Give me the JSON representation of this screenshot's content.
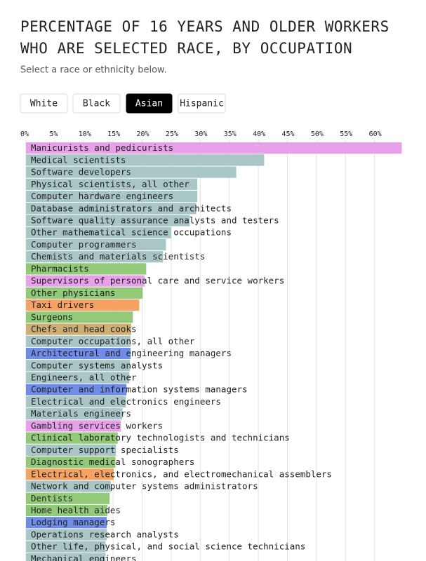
{
  "chart_data": {
    "type": "hbar",
    "title": [
      "PERCENTAGE OF 16 YEARS AND OLDER WORKERS",
      "WHO ARE SELECTED RACE, BY OCCUPATION"
    ],
    "subtitle": "Select a race or ethnicity below.",
    "controls": {
      "options": [
        "White",
        "Black",
        "Asian",
        "Hispanic"
      ],
      "selected": 2
    },
    "categories": [
      "Manicurists and pedicurists",
      "Medical scientists",
      "Software developers",
      "Physical scientists, all other",
      "Computer hardware engineers",
      "Database administrators and architects",
      "Software quality assurance analysts and testers",
      "Other mathematical science occupations",
      "Computer programmers",
      "Chemists and materials scientists",
      "Pharmacists",
      "Supervisors of personal care and service workers",
      "Other physicians",
      "Taxi drivers",
      "Surgeons",
      "Chefs and head cooks",
      "Computer occupations, all other",
      "Architectural and engineering managers",
      "Computer systems analysts",
      "Engineers, all other",
      "Computer and information systems managers",
      "Electrical and electronics engineers",
      "Materials engineers",
      "Gambling services workers",
      "Clinical laboratory technologists and technicians",
      "Computer support specialists",
      "Diagnostic medical sonographers",
      "Electrical, electronics, and electromechanical assemblers",
      "Network and computer systems administrators",
      "Dentists",
      "Home health aides",
      "Lodging managers",
      "Operations research analysts",
      "Other life, physical, and social science technicians",
      "Mechanical engineers"
    ],
    "values": [
      64.7,
      41.0,
      36.2,
      29.5,
      29.5,
      29.3,
      28.2,
      25.0,
      24.1,
      23.6,
      20.7,
      20.4,
      20.1,
      19.5,
      18.4,
      18.1,
      18.0,
      18.0,
      17.9,
      17.8,
      17.3,
      17.2,
      16.6,
      16.3,
      15.8,
      15.5,
      15.4,
      15.1,
      14.6,
      14.4,
      14.0,
      13.9,
      13.9,
      13.7,
      13.7
    ],
    "colors": [
      "#e8a0ea",
      "#a9c6c6",
      "#a9c6c6",
      "#a9c6c6",
      "#a9c6c6",
      "#a9c6c6",
      "#a9c6c6",
      "#a9c6c6",
      "#a9c6c6",
      "#a9c6c6",
      "#92ca7a",
      "#e8a0ea",
      "#92ca7a",
      "#f5a262",
      "#92ca7a",
      "#cfae74",
      "#a9c6c6",
      "#6f8de8",
      "#a9c6c6",
      "#a9c6c6",
      "#6f8de8",
      "#a9c6c6",
      "#a9c6c6",
      "#e8a0ea",
      "#92ca7a",
      "#a9c6c6",
      "#92ca7a",
      "#f5a262",
      "#a9c6c6",
      "#92ca7a",
      "#92ca7a",
      "#6f8de8",
      "#a9c6c6",
      "#a9c6c6",
      "#a9c6c6"
    ],
    "xlim": [
      0,
      65
    ],
    "xticks": [
      {
        "value": 0,
        "label": "0%"
      },
      {
        "value": 5,
        "label": "5%"
      },
      {
        "value": 10,
        "label": "10%"
      },
      {
        "value": 15,
        "label": "15%"
      },
      {
        "value": 20,
        "label": "20%"
      },
      {
        "value": 25,
        "label": "25%"
      },
      {
        "value": 30,
        "label": "30%"
      },
      {
        "value": 35,
        "label": "35%"
      },
      {
        "value": 40,
        "label": "40%"
      },
      {
        "value": 45,
        "label": "45%"
      },
      {
        "value": 50,
        "label": "50%"
      },
      {
        "value": 55,
        "label": "55%"
      },
      {
        "value": 60,
        "label": "60%"
      }
    ],
    "grid": true
  }
}
